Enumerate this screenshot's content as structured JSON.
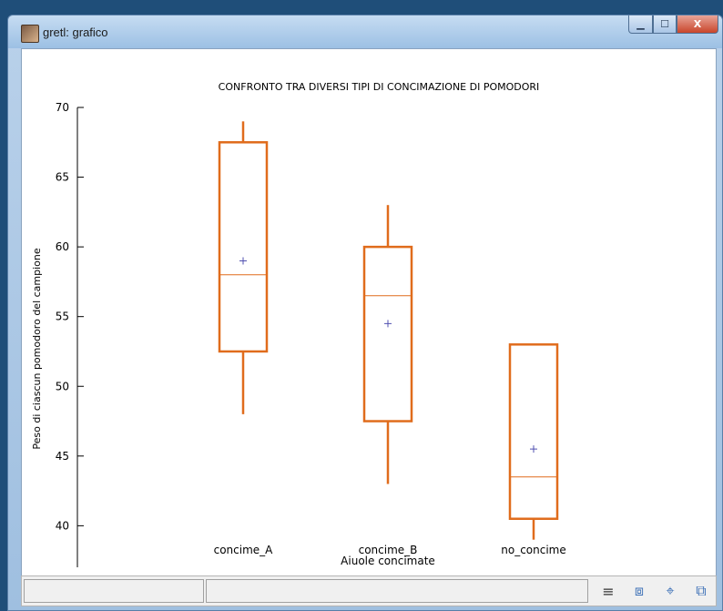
{
  "window": {
    "title": "gretl: grafico",
    "buttons": {
      "minimize": "▁",
      "maximize": "☐",
      "close": "X"
    }
  },
  "toolbar": {
    "icons": [
      "menu-icon",
      "zoom-icon",
      "target-icon",
      "close-window-icon"
    ],
    "glyphs": {
      "menu": "≡",
      "zoom": "⧈",
      "target": "⌖",
      "close": "⧉"
    }
  },
  "chart_data": {
    "type": "boxplot",
    "title": "CONFRONTO TRA DIVERSI TIPI DI CONCIMAZIONE DI POMODORI",
    "xlabel": "Aiuole concimate",
    "ylabel": "Peso di ciascun pomodoro del campione",
    "ylim": [
      38,
      70
    ],
    "yticks": [
      40,
      45,
      50,
      55,
      60,
      65,
      70
    ],
    "box_color": "#e06c1c",
    "mean_color": "#5050b0",
    "categories": [
      "concime_A",
      "concime_B",
      "no_concime"
    ],
    "boxes": [
      {
        "name": "concime_A",
        "min": 48,
        "q1": 52.5,
        "median": 58,
        "q3": 67.5,
        "max": 69,
        "mean": 59
      },
      {
        "name": "concime_B",
        "min": 43,
        "q1": 47.5,
        "median": 56.5,
        "q3": 60,
        "max": 63,
        "mean": 54.5
      },
      {
        "name": "no_concime",
        "min": 39,
        "q1": 40.5,
        "median": 43.5,
        "q3": 53,
        "max": 53,
        "mean": 45.5
      }
    ]
  }
}
